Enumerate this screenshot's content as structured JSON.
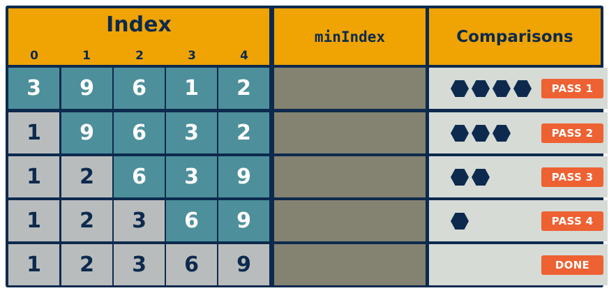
{
  "header": {
    "index_title": "Index",
    "index_numbers": [
      "0",
      "1",
      "2",
      "3",
      "4"
    ],
    "min_index_label": "minIndex",
    "comparisons_label": "Comparisons"
  },
  "rows": [
    {
      "values": [
        "3",
        "9",
        "6",
        "1",
        "2"
      ],
      "sorted_count": 0,
      "comparisons": 4,
      "badge": "PASS 1"
    },
    {
      "values": [
        "1",
        "9",
        "6",
        "3",
        "2"
      ],
      "sorted_count": 1,
      "comparisons": 3,
      "badge": "PASS 2"
    },
    {
      "values": [
        "1",
        "2",
        "6",
        "3",
        "9"
      ],
      "sorted_count": 2,
      "comparisons": 2,
      "badge": "PASS 3"
    },
    {
      "values": [
        "1",
        "2",
        "3",
        "6",
        "9"
      ],
      "sorted_count": 3,
      "comparisons": 1,
      "badge": "PASS 4"
    },
    {
      "values": [
        "1",
        "2",
        "3",
        "6",
        "9"
      ],
      "sorted_count": 5,
      "comparisons": 0,
      "badge": "DONE"
    }
  ],
  "colors": {
    "header": "#efa404",
    "active_cell": "#4d8f9b",
    "sorted_cell": "#b9bcbc",
    "min_index_cell": "#848270",
    "comparison_cell": "#d6dbd6",
    "badge": "#ee6132",
    "grid": "#0d2a4e"
  }
}
